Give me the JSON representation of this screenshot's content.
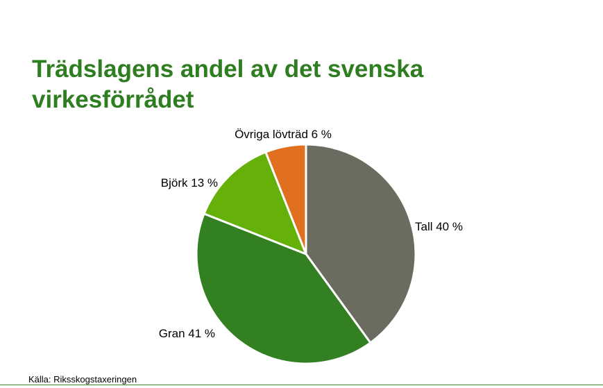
{
  "slide": {
    "title_line1": "Trädslagens andel av det svenska",
    "title_line2": "virkesförrådet",
    "source": "Källa: Riksskogstaxeringen"
  },
  "chart_data": {
    "type": "pie",
    "title": "Trädslagens andel av det svenska virkesförrådet",
    "start": "12 o'clock",
    "direction": "clockwise",
    "slices": [
      {
        "label": "Tall",
        "value": 40,
        "display": "Tall 40 %",
        "color": "#6b6b60"
      },
      {
        "label": "Gran",
        "value": 41,
        "display": "Gran 41 %",
        "color": "#338023"
      },
      {
        "label": "Björk",
        "value": 13,
        "display": "Björk 13 %",
        "color": "#66b00a"
      },
      {
        "label": "Övriga lövträd",
        "value": 6,
        "display": "Övriga lövträd 6 %",
        "color": "#e0701f"
      }
    ]
  },
  "colors": {
    "title": "#2e7d20",
    "rule": "#3b8a2a"
  }
}
